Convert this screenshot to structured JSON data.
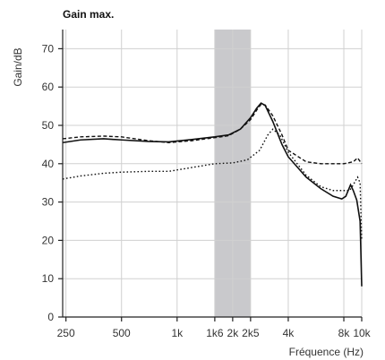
{
  "chart_data": {
    "type": "line",
    "title": "Gain max.",
    "xlabel": "Fréquence (Hz)",
    "ylabel": "Gain/dB",
    "xscale": "log",
    "xlim": [
      240,
      10000
    ],
    "ylim": [
      0,
      75
    ],
    "x_ticks": [
      {
        "value": 250,
        "label": "250"
      },
      {
        "value": 500,
        "label": "500"
      },
      {
        "value": 1000,
        "label": "1k"
      },
      {
        "value": 1600,
        "label": "1k6"
      },
      {
        "value": 2000,
        "label": "2k"
      },
      {
        "value": 2500,
        "label": "2k5"
      },
      {
        "value": 4000,
        "label": "4k"
      },
      {
        "value": 8000,
        "label": "8k"
      },
      {
        "value": 10000,
        "label": "10k"
      }
    ],
    "y_ticks": [
      0,
      10,
      20,
      30,
      40,
      50,
      60,
      70
    ],
    "grid": true,
    "band": {
      "x_start": 1600,
      "x_end": 2500,
      "color": "#c9c9cc"
    },
    "series": [
      {
        "style": "solid",
        "points": [
          [
            240,
            45.5
          ],
          [
            300,
            46.2
          ],
          [
            400,
            46.5
          ],
          [
            500,
            46.2
          ],
          [
            700,
            45.8
          ],
          [
            900,
            45.7
          ],
          [
            1200,
            46.3
          ],
          [
            1600,
            47.0
          ],
          [
            1900,
            47.5
          ],
          [
            2200,
            49.0
          ],
          [
            2500,
            52.0
          ],
          [
            2700,
            54.5
          ],
          [
            2850,
            55.8
          ],
          [
            3000,
            55.2
          ],
          [
            3300,
            51.0
          ],
          [
            3700,
            45.0
          ],
          [
            4000,
            41.8
          ],
          [
            5000,
            36.5
          ],
          [
            6000,
            33.5
          ],
          [
            7000,
            31.5
          ],
          [
            7800,
            30.8
          ],
          [
            8200,
            31.5
          ],
          [
            8700,
            34.5
          ],
          [
            9000,
            33.0
          ],
          [
            9400,
            30.5
          ],
          [
            9800,
            25.0
          ],
          [
            10000,
            8.0
          ]
        ]
      },
      {
        "style": "dashed",
        "points": [
          [
            240,
            46.5
          ],
          [
            300,
            47.0
          ],
          [
            400,
            47.2
          ],
          [
            500,
            47.0
          ],
          [
            700,
            46.0
          ],
          [
            900,
            45.5
          ],
          [
            1200,
            46.0
          ],
          [
            1600,
            46.8
          ],
          [
            1900,
            47.3
          ],
          [
            2200,
            49.0
          ],
          [
            2500,
            51.5
          ],
          [
            2700,
            54.0
          ],
          [
            2850,
            55.5
          ],
          [
            3000,
            55.3
          ],
          [
            3300,
            52.5
          ],
          [
            3700,
            47.5
          ],
          [
            4000,
            43.5
          ],
          [
            5000,
            40.5
          ],
          [
            6000,
            40.0
          ],
          [
            7000,
            40.0
          ],
          [
            8000,
            40.0
          ],
          [
            9000,
            40.5
          ],
          [
            9500,
            41.5
          ],
          [
            10000,
            40.0
          ]
        ]
      },
      {
        "style": "dotted",
        "points": [
          [
            240,
            36.0
          ],
          [
            300,
            36.8
          ],
          [
            400,
            37.5
          ],
          [
            500,
            37.8
          ],
          [
            700,
            38.0
          ],
          [
            900,
            38.0
          ],
          [
            1200,
            39.0
          ],
          [
            1600,
            40.0
          ],
          [
            2000,
            40.2
          ],
          [
            2400,
            41.0
          ],
          [
            2800,
            43.5
          ],
          [
            3100,
            47.5
          ],
          [
            3300,
            49.0
          ],
          [
            3600,
            47.5
          ],
          [
            4000,
            43.0
          ],
          [
            5000,
            37.0
          ],
          [
            6000,
            34.0
          ],
          [
            7000,
            33.0
          ],
          [
            8000,
            33.0
          ],
          [
            8600,
            33.0
          ],
          [
            9000,
            34.5
          ],
          [
            9500,
            36.5
          ],
          [
            9800,
            35.0
          ],
          [
            10000,
            20.0
          ]
        ]
      }
    ]
  }
}
